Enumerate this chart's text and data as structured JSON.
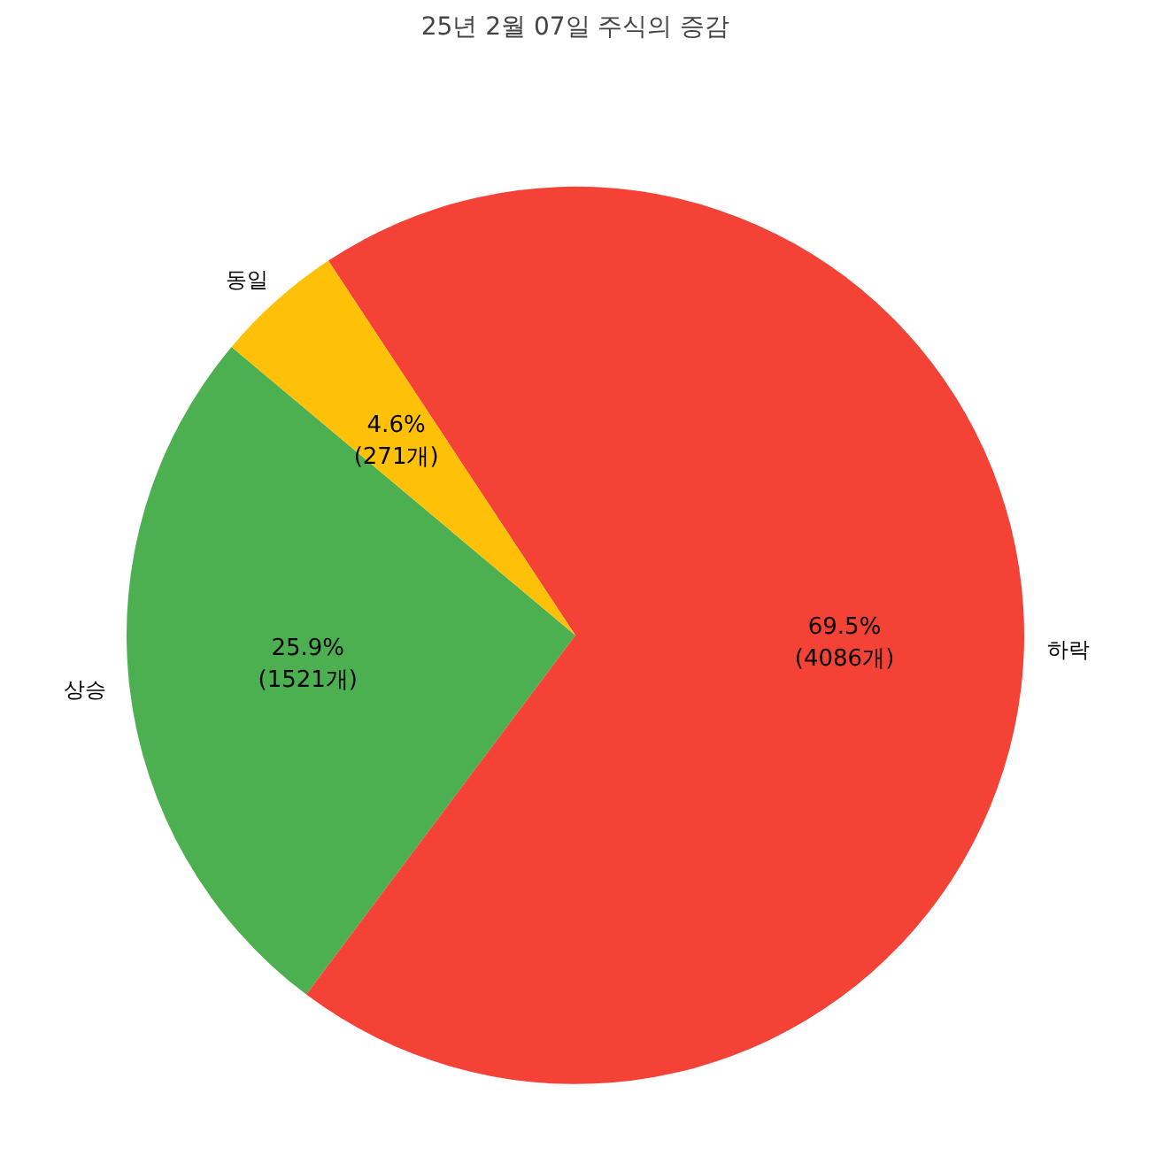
{
  "chart_data": {
    "type": "pie",
    "title": "25년 2월 07일 주식의 증감",
    "categories": [
      "상승",
      "하락",
      "동일"
    ],
    "values": [
      1521,
      4086,
      271
    ],
    "colors": [
      "#4caf50",
      "#f44336",
      "#ffc107"
    ],
    "value_labels": [
      "25.9%\n(1521개)",
      "69.5%\n(4086개)",
      "4.6%\n(271개)"
    ]
  }
}
